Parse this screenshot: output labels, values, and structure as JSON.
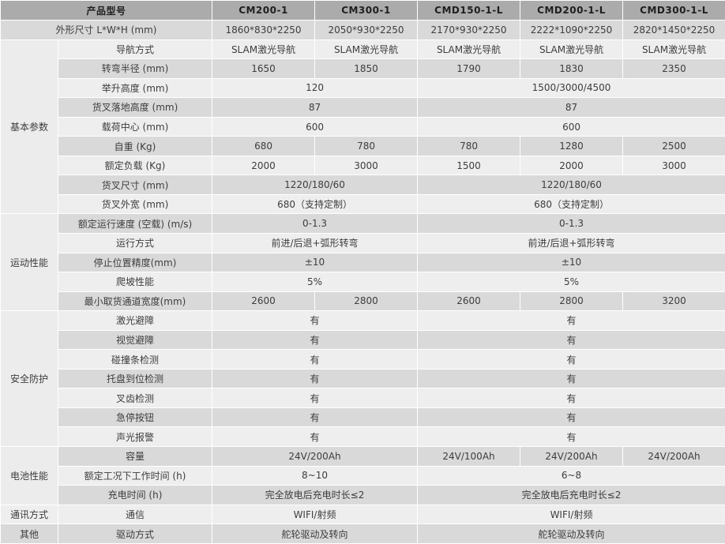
{
  "colors": {
    "header_bg": "#ababab",
    "row_dark": "#d9d9d9",
    "row_light": "#eeeeee",
    "group_bg": "#ececec",
    "text": "#3d3d3d"
  },
  "table": {
    "header": {
      "cells": [
        {
          "t": "产品型号",
          "c": 2
        },
        {
          "t": "CM200-1"
        },
        {
          "t": "CM300-1"
        },
        {
          "t": "CMD150-1-L"
        },
        {
          "t": "CMD200-1-L"
        },
        {
          "t": "CMD300-1-L"
        }
      ]
    },
    "rows": [
      {
        "label": {
          "t": "外形尺寸 L*W*H (mm)",
          "c": 2
        },
        "values": [
          {
            "t": "1860*830*2250"
          },
          {
            "t": "2050*930*2250"
          },
          {
            "t": "2170*930*2250"
          },
          {
            "t": "2222*1090*2250"
          },
          {
            "t": "2820*1450*2250"
          }
        ]
      },
      {
        "group": {
          "t": "基本参数",
          "rs": 9
        },
        "label": {
          "t": "导航方式"
        },
        "values": [
          {
            "t": "SLAM激光导航"
          },
          {
            "t": "SLAM激光导航"
          },
          {
            "t": "SLAM激光导航"
          },
          {
            "t": "SLAM激光导航"
          },
          {
            "t": "SLAM激光导航"
          }
        ]
      },
      {
        "label": {
          "t": "转弯半径 (mm)"
        },
        "values": [
          {
            "t": "1650"
          },
          {
            "t": "1850"
          },
          {
            "t": "1790"
          },
          {
            "t": "1830"
          },
          {
            "t": "2350"
          }
        ]
      },
      {
        "label": {
          "t": "举升高度 (mm)"
        },
        "values": [
          {
            "t": "120",
            "c": 2
          },
          {
            "t": "1500/3000/4500",
            "c": 3
          }
        ]
      },
      {
        "label": {
          "t": "货叉落地高度 (mm)"
        },
        "values": [
          {
            "t": "87",
            "c": 2
          },
          {
            "t": "87",
            "c": 3
          }
        ]
      },
      {
        "label": {
          "t": "载荷中心 (mm)"
        },
        "values": [
          {
            "t": "600",
            "c": 2
          },
          {
            "t": "600",
            "c": 3
          }
        ]
      },
      {
        "label": {
          "t": "自重 (Kg)"
        },
        "values": [
          {
            "t": "680"
          },
          {
            "t": "780"
          },
          {
            "t": "780"
          },
          {
            "t": "1280"
          },
          {
            "t": "2500"
          }
        ]
      },
      {
        "label": {
          "t": "额定负载 (Kg)"
        },
        "values": [
          {
            "t": "2000"
          },
          {
            "t": "3000"
          },
          {
            "t": "1500"
          },
          {
            "t": "2000"
          },
          {
            "t": "3000"
          }
        ]
      },
      {
        "label": {
          "t": "货叉尺寸 (mm)"
        },
        "values": [
          {
            "t": "1220/180/60",
            "c": 2
          },
          {
            "t": "1220/180/60",
            "c": 3
          }
        ]
      },
      {
        "label": {
          "t": "货叉外宽 (mm)"
        },
        "values": [
          {
            "t": "680（支持定制）",
            "c": 2
          },
          {
            "t": "680（支持定制）",
            "c": 3
          }
        ]
      },
      {
        "group": {
          "t": "运动性能",
          "rs": 5
        },
        "label": {
          "t": "额定运行速度 (空载) (m/s)"
        },
        "values": [
          {
            "t": "0-1.3",
            "c": 2
          },
          {
            "t": "0-1.3",
            "c": 3
          }
        ]
      },
      {
        "label": {
          "t": "运行方式"
        },
        "values": [
          {
            "t": "前进/后退+弧形转弯",
            "c": 2
          },
          {
            "t": "前进/后退+弧形转弯",
            "c": 3
          }
        ]
      },
      {
        "label": {
          "t": "停止位置精度(mm)"
        },
        "values": [
          {
            "t": "±10",
            "c": 2
          },
          {
            "t": "±10",
            "c": 3
          }
        ]
      },
      {
        "label": {
          "t": "爬坡性能"
        },
        "values": [
          {
            "t": "5%",
            "c": 2
          },
          {
            "t": "5%",
            "c": 3
          }
        ]
      },
      {
        "label": {
          "t": "最小取货通道宽度(mm)"
        },
        "values": [
          {
            "t": "2600"
          },
          {
            "t": "2800"
          },
          {
            "t": "2600"
          },
          {
            "t": "2800"
          },
          {
            "t": "3200"
          }
        ]
      },
      {
        "group": {
          "t": "安全防护",
          "rs": 7
        },
        "label": {
          "t": "激光避障"
        },
        "values": [
          {
            "t": "有",
            "c": 2
          },
          {
            "t": "有",
            "c": 3
          }
        ]
      },
      {
        "label": {
          "t": "视觉避障"
        },
        "values": [
          {
            "t": "有",
            "c": 2
          },
          {
            "t": "有",
            "c": 3
          }
        ]
      },
      {
        "label": {
          "t": "碰撞条检测"
        },
        "values": [
          {
            "t": "有",
            "c": 2
          },
          {
            "t": "有",
            "c": 3
          }
        ]
      },
      {
        "label": {
          "t": "托盘到位检测"
        },
        "values": [
          {
            "t": "有",
            "c": 2
          },
          {
            "t": "有",
            "c": 3
          }
        ]
      },
      {
        "label": {
          "t": "叉齿检测"
        },
        "values": [
          {
            "t": "有",
            "c": 2
          },
          {
            "t": "有",
            "c": 3
          }
        ]
      },
      {
        "label": {
          "t": "急停按钮"
        },
        "values": [
          {
            "t": "有",
            "c": 2
          },
          {
            "t": "有",
            "c": 3
          }
        ]
      },
      {
        "label": {
          "t": "声光报警"
        },
        "values": [
          {
            "t": "有",
            "c": 2
          },
          {
            "t": "有",
            "c": 3
          }
        ]
      },
      {
        "group": {
          "t": "电池性能",
          "rs": 3
        },
        "label": {
          "t": "容量"
        },
        "values": [
          {
            "t": "24V/200Ah",
            "c": 2
          },
          {
            "t": "24V/100Ah"
          },
          {
            "t": "24V/200Ah"
          },
          {
            "t": "24V/200Ah"
          }
        ]
      },
      {
        "label": {
          "t": "额定工况下工作时间 (h)"
        },
        "values": [
          {
            "t": "8~10",
            "c": 2
          },
          {
            "t": "6~8",
            "c": 3
          }
        ]
      },
      {
        "label": {
          "t": "充电时间 (h)"
        },
        "values": [
          {
            "t": "完全放电后充电时长≤2",
            "c": 2
          },
          {
            "t": "完全放电后充电时长≤2",
            "c": 3
          }
        ]
      },
      {
        "group": {
          "t": "通讯方式",
          "rs": 1
        },
        "label": {
          "t": "通信"
        },
        "values": [
          {
            "t": "WIFI/射频",
            "c": 2
          },
          {
            "t": "WIFI/射频",
            "c": 3
          }
        ]
      },
      {
        "group": {
          "t": "其他",
          "rs": 1
        },
        "label": {
          "t": "驱动方式"
        },
        "values": [
          {
            "t": "舵轮驱动及转向",
            "c": 2
          },
          {
            "t": "舵轮驱动及转向",
            "c": 3
          }
        ]
      }
    ]
  }
}
